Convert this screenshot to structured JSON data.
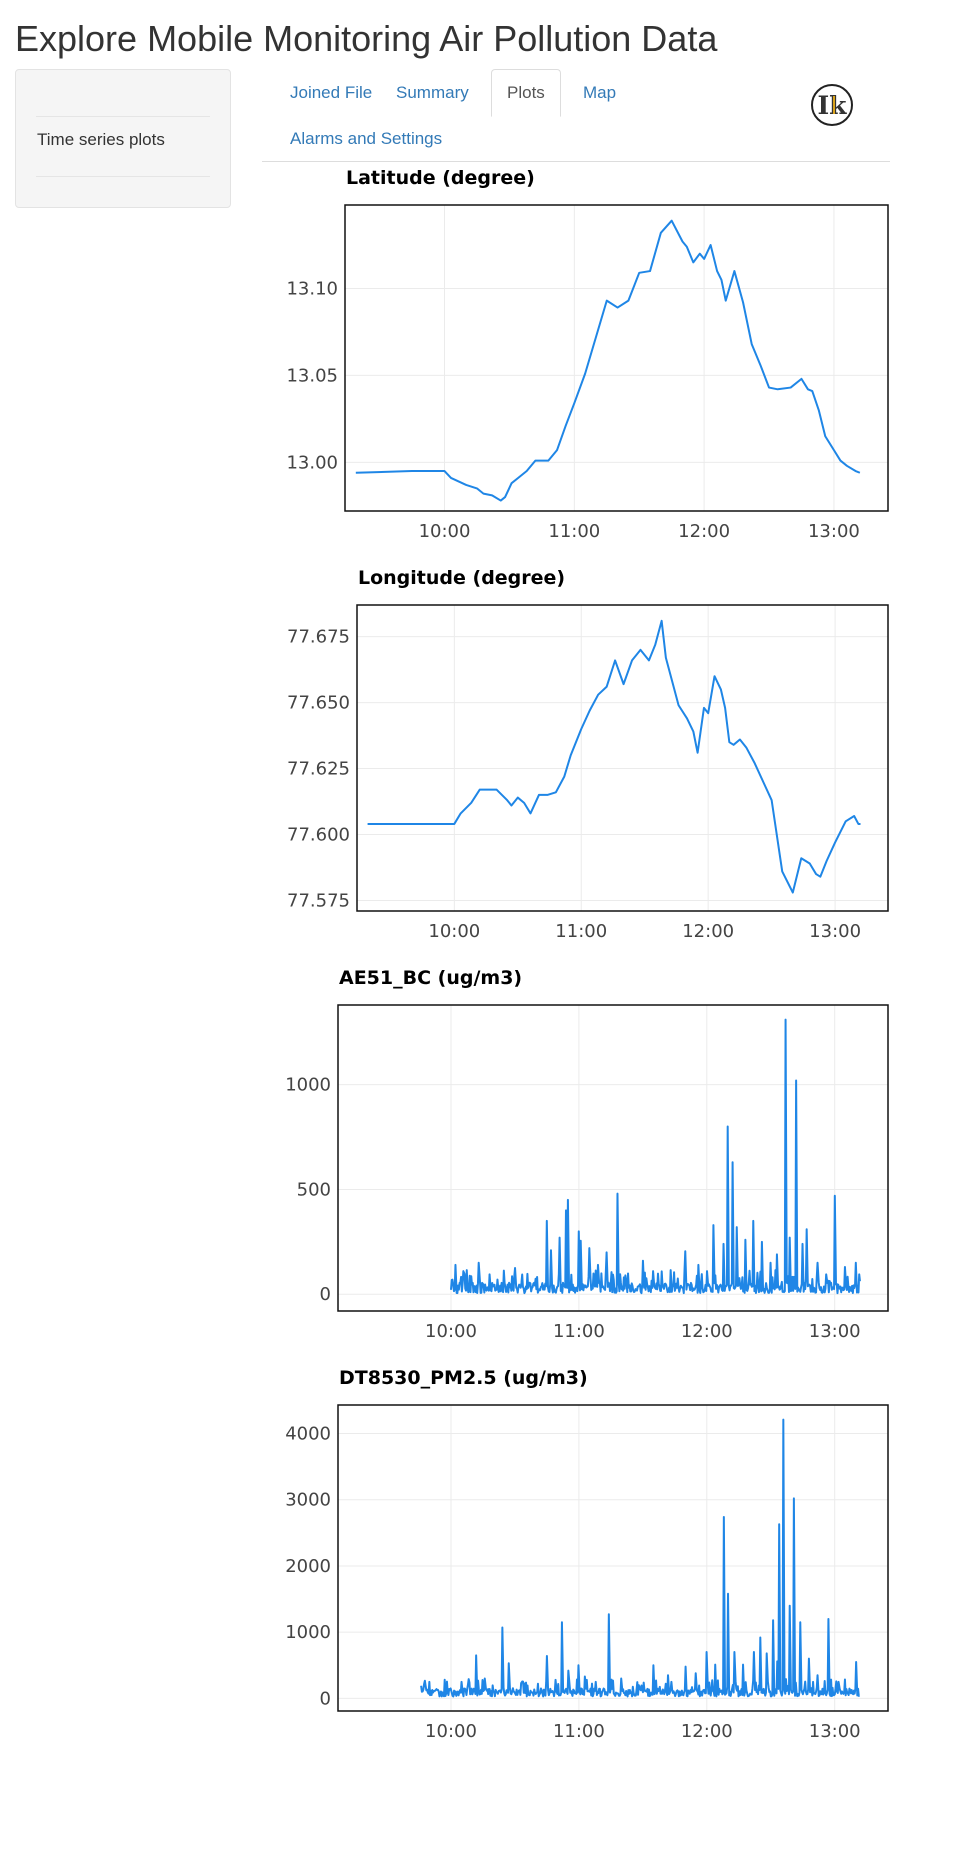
{
  "app": {
    "title": "Explore Mobile Monitoring Air Pollution Data"
  },
  "sidebar": {
    "label": "Time series plots"
  },
  "tabs": [
    {
      "label": "Joined File",
      "active": false
    },
    {
      "label": "Summary",
      "active": false
    },
    {
      "label": "Plots",
      "active": true
    },
    {
      "label": "Map",
      "active": false
    },
    {
      "label": "Alarms and Settings",
      "active": false
    }
  ],
  "logo": {
    "icon": "ik-logo-icon",
    "letters": "Ik"
  },
  "colors": {
    "series": "#1f86e6",
    "link": "#337ab7"
  },
  "chart_data": [
    {
      "type": "line",
      "title": "Latitude (degree)",
      "xlabel": "",
      "ylabel": "",
      "x_ticks": [
        "10:00",
        "11:00",
        "12:00",
        "13:00"
      ],
      "y_ticks": [
        "13.00",
        "13.05",
        "13.10"
      ],
      "xlim": [
        "09:14",
        "13:25"
      ],
      "ylim": [
        12.972,
        13.148
      ],
      "grid": true,
      "x": [
        "09:19",
        "09:45",
        "10:00",
        "10:03",
        "10:10",
        "10:15",
        "10:18",
        "10:22",
        "10:26",
        "10:28",
        "10:31",
        "10:34",
        "10:38",
        "10:42",
        "10:45",
        "10:48",
        "10:52",
        "10:56",
        "11:00",
        "11:05",
        "11:10",
        "11:15",
        "11:20",
        "11:25",
        "11:30",
        "11:35",
        "11:40",
        "11:45",
        "11:50",
        "11:52",
        "11:55",
        "11:58",
        "12:00",
        "12:03",
        "12:06",
        "12:08",
        "12:10",
        "12:14",
        "12:18",
        "12:22",
        "12:26",
        "12:30",
        "12:34",
        "12:40",
        "12:45",
        "12:48",
        "12:50",
        "12:53",
        "12:56",
        "13:00",
        "13:03",
        "13:06",
        "13:10",
        "13:12"
      ],
      "values": [
        12.994,
        12.995,
        12.995,
        12.991,
        12.987,
        12.985,
        12.982,
        12.981,
        12.978,
        12.98,
        12.988,
        12.991,
        12.995,
        13.001,
        13.001,
        13.001,
        13.007,
        13.021,
        13.034,
        13.051,
        13.072,
        13.093,
        13.089,
        13.093,
        13.109,
        13.11,
        13.132,
        13.139,
        13.127,
        13.124,
        13.115,
        13.12,
        13.117,
        13.125,
        13.11,
        13.105,
        13.093,
        13.11,
        13.092,
        13.068,
        13.056,
        13.043,
        13.042,
        13.043,
        13.048,
        13.042,
        13.041,
        13.03,
        13.015,
        13.007,
        13.001,
        12.998,
        12.995,
        12.994
      ]
    },
    {
      "type": "line",
      "title": "Longitude (degree)",
      "xlabel": "",
      "ylabel": "",
      "x_ticks": [
        "10:00",
        "11:00",
        "12:00",
        "13:00"
      ],
      "y_ticks": [
        "77.575",
        "77.600",
        "77.625",
        "77.650",
        "77.675"
      ],
      "xlim": [
        "09:14",
        "13:25"
      ],
      "ylim": [
        77.571,
        77.687
      ],
      "grid": true,
      "x": [
        "09:19",
        "09:45",
        "10:00",
        "10:03",
        "10:08",
        "10:12",
        "10:16",
        "10:20",
        "10:25",
        "10:27",
        "10:30",
        "10:33",
        "10:36",
        "10:40",
        "10:44",
        "10:48",
        "10:52",
        "10:55",
        "11:00",
        "11:04",
        "11:08",
        "11:12",
        "11:16",
        "11:20",
        "11:24",
        "11:28",
        "11:32",
        "11:35",
        "11:38",
        "11:40",
        "11:43",
        "11:46",
        "11:50",
        "11:53",
        "11:55",
        "11:58",
        "12:00",
        "12:03",
        "12:06",
        "12:08",
        "12:10",
        "12:12",
        "12:15",
        "12:18",
        "12:22",
        "12:26",
        "12:30",
        "12:35",
        "12:40",
        "12:44",
        "12:48",
        "12:51",
        "12:53",
        "12:56",
        "13:00",
        "13:05",
        "13:09",
        "13:11",
        "13:12"
      ],
      "values": [
        77.604,
        77.604,
        77.604,
        77.608,
        77.612,
        77.617,
        77.617,
        77.617,
        77.613,
        77.611,
        77.614,
        77.612,
        77.608,
        77.615,
        77.615,
        77.616,
        77.622,
        77.63,
        77.64,
        77.647,
        77.653,
        77.656,
        77.666,
        77.657,
        77.666,
        77.67,
        77.666,
        77.672,
        77.681,
        77.667,
        77.658,
        77.649,
        77.644,
        77.639,
        77.631,
        77.648,
        77.646,
        77.66,
        77.655,
        77.648,
        77.635,
        77.634,
        77.636,
        77.633,
        77.627,
        77.62,
        77.613,
        77.586,
        77.578,
        77.591,
        77.589,
        77.585,
        77.584,
        77.59,
        77.597,
        77.605,
        77.607,
        77.604,
        77.604
      ]
    },
    {
      "type": "line",
      "title": "AE51_BC (ug/m3)",
      "xlabel": "",
      "ylabel": "",
      "x_ticks": [
        "10:00",
        "11:00",
        "12:00",
        "13:00"
      ],
      "y_ticks": [
        "0",
        "500",
        "1000"
      ],
      "xlim": [
        "09:07",
        "13:25"
      ],
      "ylim": [
        -80,
        1380
      ],
      "grid": true,
      "base_range": [
        5,
        55
      ],
      "spikes": [
        {
          "x": "10:02",
          "y": 140
        },
        {
          "x": "10:06",
          "y": 110
        },
        {
          "x": "10:13",
          "y": 150
        },
        {
          "x": "10:18",
          "y": 95
        },
        {
          "x": "10:22",
          "y": 70
        },
        {
          "x": "10:30",
          "y": 125
        },
        {
          "x": "10:45",
          "y": 350
        },
        {
          "x": "10:47",
          "y": 210
        },
        {
          "x": "10:51",
          "y": 270
        },
        {
          "x": "10:54",
          "y": 400
        },
        {
          "x": "10:55",
          "y": 450
        },
        {
          "x": "11:00",
          "y": 300
        },
        {
          "x": "11:01",
          "y": 255
        },
        {
          "x": "11:05",
          "y": 220
        },
        {
          "x": "11:09",
          "y": 140
        },
        {
          "x": "11:13",
          "y": 200
        },
        {
          "x": "11:18",
          "y": 480
        },
        {
          "x": "11:22",
          "y": 90
        },
        {
          "x": "11:30",
          "y": 160
        },
        {
          "x": "11:35",
          "y": 110
        },
        {
          "x": "11:43",
          "y": 115
        },
        {
          "x": "11:50",
          "y": 205
        },
        {
          "x": "11:56",
          "y": 140
        },
        {
          "x": "12:00",
          "y": 110
        },
        {
          "x": "12:03",
          "y": 330
        },
        {
          "x": "12:08",
          "y": 240
        },
        {
          "x": "12:10",
          "y": 800
        },
        {
          "x": "12:12",
          "y": 630
        },
        {
          "x": "12:14",
          "y": 320
        },
        {
          "x": "12:18",
          "y": 260
        },
        {
          "x": "12:22",
          "y": 350
        },
        {
          "x": "12:26",
          "y": 250
        },
        {
          "x": "12:30",
          "y": 150
        },
        {
          "x": "12:33",
          "y": 190
        },
        {
          "x": "12:37",
          "y": 1310
        },
        {
          "x": "12:39",
          "y": 270
        },
        {
          "x": "12:42",
          "y": 1020
        },
        {
          "x": "12:45",
          "y": 240
        },
        {
          "x": "12:47",
          "y": 310
        },
        {
          "x": "12:52",
          "y": 150
        },
        {
          "x": "12:56",
          "y": 95
        },
        {
          "x": "13:00",
          "y": 470
        },
        {
          "x": "13:05",
          "y": 130
        },
        {
          "x": "13:10",
          "y": 150
        }
      ]
    },
    {
      "type": "line",
      "title": "DT8530_PM2.5 (ug/m3)",
      "xlabel": "",
      "ylabel": "",
      "x_ticks": [
        "10:00",
        "11:00",
        "12:00",
        "13:00"
      ],
      "y_ticks": [
        "0",
        "1000",
        "2000",
        "3000",
        "4000"
      ],
      "xlim": [
        "09:07",
        "13:25"
      ],
      "ylim": [
        -190,
        4430
      ],
      "grid": true,
      "base_range": [
        30,
        150
      ],
      "spikes": [
        {
          "x": "09:52",
          "y": 110
        },
        {
          "x": "10:00",
          "y": 150
        },
        {
          "x": "10:05",
          "y": 250
        },
        {
          "x": "10:12",
          "y": 650
        },
        {
          "x": "10:16",
          "y": 300
        },
        {
          "x": "10:24",
          "y": 1070
        },
        {
          "x": "10:27",
          "y": 530
        },
        {
          "x": "10:33",
          "y": 230
        },
        {
          "x": "10:45",
          "y": 640
        },
        {
          "x": "10:49",
          "y": 280
        },
        {
          "x": "10:52",
          "y": 1150
        },
        {
          "x": "10:55",
          "y": 420
        },
        {
          "x": "11:00",
          "y": 500
        },
        {
          "x": "11:03",
          "y": 330
        },
        {
          "x": "11:08",
          "y": 250
        },
        {
          "x": "11:14",
          "y": 1270
        },
        {
          "x": "11:20",
          "y": 300
        },
        {
          "x": "11:28",
          "y": 200
        },
        {
          "x": "11:35",
          "y": 500
        },
        {
          "x": "11:42",
          "y": 350
        },
        {
          "x": "11:50",
          "y": 480
        },
        {
          "x": "11:55",
          "y": 380
        },
        {
          "x": "12:00",
          "y": 700
        },
        {
          "x": "12:04",
          "y": 510
        },
        {
          "x": "12:08",
          "y": 2740
        },
        {
          "x": "12:10",
          "y": 1580
        },
        {
          "x": "12:13",
          "y": 700
        },
        {
          "x": "12:17",
          "y": 510
        },
        {
          "x": "12:22",
          "y": 700
        },
        {
          "x": "12:25",
          "y": 920
        },
        {
          "x": "12:28",
          "y": 680
        },
        {
          "x": "12:31",
          "y": 1180
        },
        {
          "x": "12:33",
          "y": 560
        },
        {
          "x": "12:34",
          "y": 2630
        },
        {
          "x": "12:36",
          "y": 4210
        },
        {
          "x": "12:39",
          "y": 1400
        },
        {
          "x": "12:41",
          "y": 3020
        },
        {
          "x": "12:44",
          "y": 1150
        },
        {
          "x": "12:48",
          "y": 600
        },
        {
          "x": "12:52",
          "y": 350
        },
        {
          "x": "12:57",
          "y": 1200
        },
        {
          "x": "13:02",
          "y": 250
        },
        {
          "x": "13:10",
          "y": 550
        }
      ]
    }
  ]
}
